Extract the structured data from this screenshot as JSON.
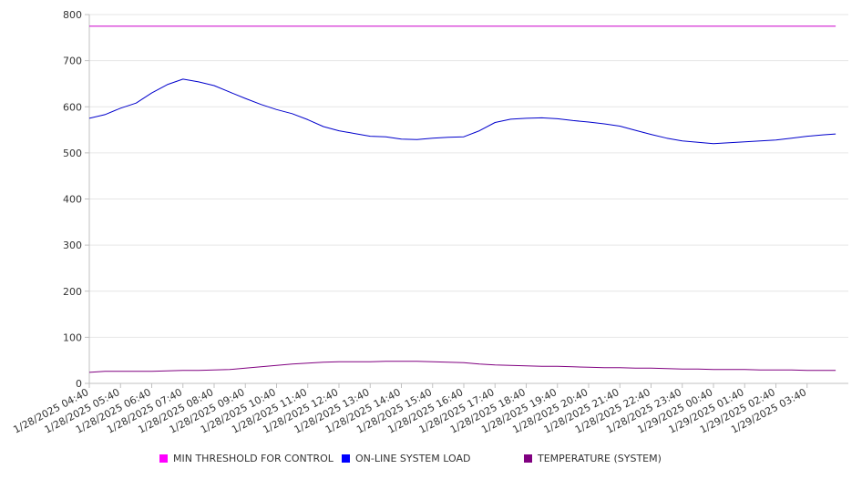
{
  "chart_data": {
    "type": "line",
    "title": "",
    "xlabel": "",
    "ylabel": "",
    "ylim": [
      0,
      800
    ],
    "yticks": [
      0,
      100,
      200,
      300,
      400,
      500,
      600,
      700,
      800
    ],
    "grid": true,
    "legend_position": "bottom",
    "x_tick_labels": [
      "1/28/2025 04:40",
      "1/28/2025 05:40",
      "1/28/2025 06:40",
      "1/28/2025 07:40",
      "1/28/2025 08:40",
      "1/28/2025 09:40",
      "1/28/2025 10:40",
      "1/28/2025 11:40",
      "1/28/2025 12:40",
      "1/28/2025 13:40",
      "1/28/2025 14:40",
      "1/28/2025 15:40",
      "1/28/2025 16:40",
      "1/28/2025 17:40",
      "1/28/2025 18:40",
      "1/28/2025 19:40",
      "1/28/2025 20:40",
      "1/28/2025 21:40",
      "1/28/2025 22:40",
      "1/28/2025 23:40",
      "1/29/2025 00:40",
      "1/29/2025 01:40",
      "1/29/2025 02:40",
      "1/29/2025 03:40"
    ],
    "x": [
      "1/28/2025 04:40",
      "1/28/2025 05:10",
      "1/28/2025 05:40",
      "1/28/2025 06:10",
      "1/28/2025 06:40",
      "1/28/2025 07:10",
      "1/28/2025 07:40",
      "1/28/2025 08:10",
      "1/28/2025 08:40",
      "1/28/2025 09:10",
      "1/28/2025 09:40",
      "1/28/2025 10:10",
      "1/28/2025 10:40",
      "1/28/2025 11:10",
      "1/28/2025 11:40",
      "1/28/2025 12:10",
      "1/28/2025 12:40",
      "1/28/2025 13:10",
      "1/28/2025 13:40",
      "1/28/2025 14:10",
      "1/28/2025 14:40",
      "1/28/2025 15:10",
      "1/28/2025 15:40",
      "1/28/2025 16:10",
      "1/28/2025 16:40",
      "1/28/2025 17:10",
      "1/28/2025 17:40",
      "1/28/2025 18:10",
      "1/28/2025 18:40",
      "1/28/2025 19:10",
      "1/28/2025 19:40",
      "1/28/2025 20:10",
      "1/28/2025 20:40",
      "1/28/2025 21:10",
      "1/28/2025 21:40",
      "1/28/2025 22:10",
      "1/28/2025 22:40",
      "1/28/2025 23:10",
      "1/28/2025 23:40",
      "1/29/2025 00:10",
      "1/29/2025 00:40",
      "1/29/2025 01:10",
      "1/29/2025 01:40",
      "1/29/2025 02:10",
      "1/29/2025 02:40",
      "1/29/2025 03:10",
      "1/29/2025 03:40",
      "1/29/2025 04:10",
      "1/29/2025 04:35"
    ],
    "series": [
      {
        "name": "MIN THRESHOLD FOR CONTROL",
        "color": "#cc00cc",
        "values": [
          775,
          775,
          775,
          775,
          775,
          775,
          775,
          775,
          775,
          775,
          775,
          775,
          775,
          775,
          775,
          775,
          775,
          775,
          775,
          775,
          775,
          775,
          775,
          775,
          775,
          775,
          775,
          775,
          775,
          775,
          775,
          775,
          775,
          775,
          775,
          775,
          775,
          775,
          775,
          775,
          775,
          775,
          775,
          775,
          775,
          775,
          775,
          775,
          775
        ]
      },
      {
        "name": "ON-LINE SYSTEM LOAD",
        "color": "#0000cc",
        "values": [
          575,
          583,
          597,
          608,
          630,
          648,
          660,
          654,
          646,
          632,
          618,
          605,
          594,
          585,
          572,
          557,
          548,
          542,
          536,
          535,
          530,
          529,
          532,
          534,
          535,
          548,
          566,
          573,
          575,
          576,
          574,
          570,
          567,
          563,
          558,
          549,
          540,
          532,
          526,
          523,
          520,
          522,
          524,
          526,
          528,
          532,
          536,
          539,
          541
        ]
      },
      {
        "name": "TEMPERATURE (SYSTEM)",
        "color": "#800080",
        "values": [
          24,
          26,
          26,
          26,
          26,
          27,
          28,
          28,
          29,
          30,
          33,
          36,
          39,
          42,
          44,
          46,
          47,
          47,
          47,
          48,
          48,
          48,
          47,
          46,
          45,
          42,
          40,
          39,
          38,
          37,
          37,
          36,
          35,
          34,
          34,
          33,
          33,
          32,
          31,
          31,
          30,
          30,
          30,
          29,
          29,
          29,
          28,
          28,
          28
        ]
      }
    ]
  }
}
